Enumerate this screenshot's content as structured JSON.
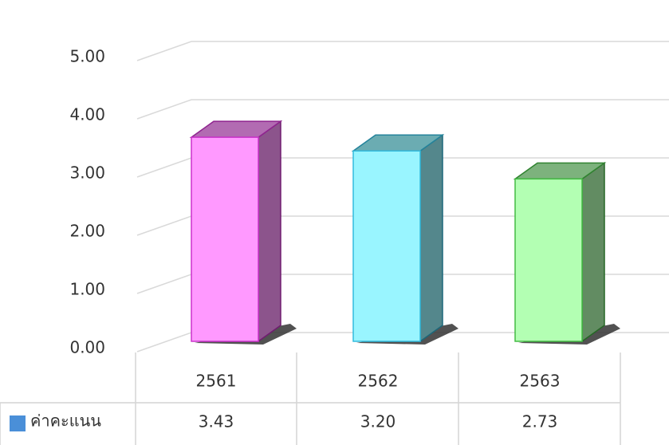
{
  "chart_data": {
    "type": "bar3d",
    "categories": [
      "2561",
      "2562",
      "2563"
    ],
    "series": [
      {
        "name": "ค่าคะแนน",
        "color": "#4a8fd8",
        "values": [
          3.43,
          3.2,
          2.73
        ],
        "value_labels": [
          "3.43",
          "3.20",
          "2.73"
        ],
        "point_colors": [
          "#ff99ff",
          "#99f5ff",
          "#b3ffb3"
        ],
        "edge_colors": [
          "#cc33cc",
          "#33bbdd",
          "#44bb44"
        ]
      }
    ],
    "ylim": [
      0,
      5
    ],
    "yticks": [
      {
        "value": 0,
        "label": "0.00"
      },
      {
        "value": 1,
        "label": "1.00"
      },
      {
        "value": 2,
        "label": "2.00"
      },
      {
        "value": 3,
        "label": "3.00"
      },
      {
        "value": 4,
        "label": "4.00"
      },
      {
        "value": 5,
        "label": "5.00"
      }
    ],
    "grid": true
  }
}
